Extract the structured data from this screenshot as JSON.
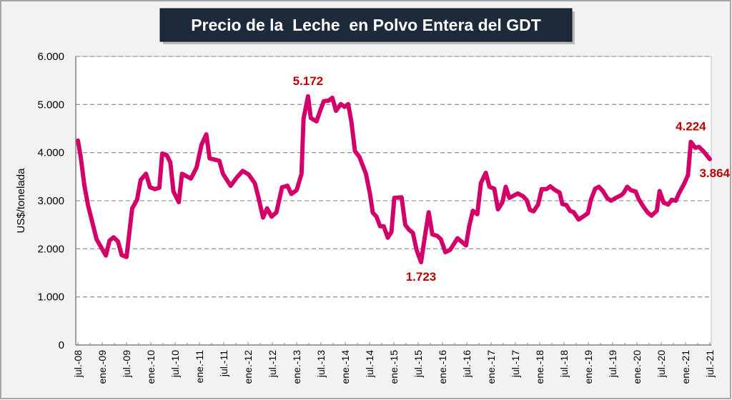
{
  "chart_data": {
    "type": "line",
    "title": "Precio de la  Leche  en Polvo Entera del GDT",
    "ylabel": "US$/tonelada",
    "xlabel": "",
    "ylim": [
      0,
      6000
    ],
    "xlim_months": [
      0,
      156
    ],
    "grid": "horizontal dashed",
    "line_color": "#d4006a",
    "annotation_color": "#c00000",
    "title_bg": "#1c2a3a",
    "y_ticks": [
      {
        "value": 0,
        "label": "0"
      },
      {
        "value": 1000,
        "label": "1.000"
      },
      {
        "value": 2000,
        "label": "2.000"
      },
      {
        "value": 3000,
        "label": "3.000"
      },
      {
        "value": 4000,
        "label": "4.000"
      },
      {
        "value": 5000,
        "label": "5.000"
      },
      {
        "value": 6000,
        "label": "6.000"
      }
    ],
    "x_ticks": [
      "jul.-08",
      "ene.-09",
      "jul.-09",
      "ene.-10",
      "jul.-10",
      "ene.-11",
      "jul.-11",
      "ene.-12",
      "jul.-12",
      "ene.-13",
      "jul.-13",
      "ene.-14",
      "jul.-14",
      "ene.-15",
      "jul.-15",
      "ene.-16",
      "jul.-16",
      "ene.-17",
      "jul.-17",
      "ene.-18",
      "jul.-18",
      "ene.-19",
      "jul.-19",
      "ene.-20",
      "jul.-20",
      "ene.-21",
      "jul.-21"
    ],
    "x_unit": "months since jul.-08",
    "series": [
      {
        "name": "Leche en Polvo Entera",
        "points": [
          [
            0,
            4250
          ],
          [
            0.7,
            3900
          ],
          [
            1.6,
            3310
          ],
          [
            2.5,
            2900
          ],
          [
            4.6,
            2200
          ],
          [
            6.9,
            1860
          ],
          [
            7.8,
            2170
          ],
          [
            8.8,
            2240
          ],
          [
            9.9,
            2150
          ],
          [
            10.8,
            1870
          ],
          [
            12,
            1830
          ],
          [
            13.4,
            2840
          ],
          [
            14.6,
            3020
          ],
          [
            15.5,
            3430
          ],
          [
            16.8,
            3560
          ],
          [
            17.8,
            3280
          ],
          [
            19,
            3240
          ],
          [
            20.1,
            3270
          ],
          [
            20.8,
            3980
          ],
          [
            21.9,
            3950
          ],
          [
            22.8,
            3800
          ],
          [
            23.6,
            3190
          ],
          [
            24.9,
            2970
          ],
          [
            25.7,
            3560
          ],
          [
            27.9,
            3460
          ],
          [
            29.3,
            3690
          ],
          [
            30.5,
            4160
          ],
          [
            31.7,
            4380
          ],
          [
            32.5,
            3880
          ],
          [
            34.9,
            3830
          ],
          [
            35.8,
            3560
          ],
          [
            37.7,
            3310
          ],
          [
            39.3,
            3490
          ],
          [
            40.7,
            3620
          ],
          [
            42.2,
            3540
          ],
          [
            43.7,
            3360
          ],
          [
            44.6,
            3060
          ],
          [
            45.7,
            2650
          ],
          [
            46.7,
            2840
          ],
          [
            47.8,
            2670
          ],
          [
            49,
            2760
          ],
          [
            50.4,
            3280
          ],
          [
            51.7,
            3310
          ],
          [
            52.7,
            3140
          ],
          [
            54,
            3220
          ],
          [
            55.2,
            3560
          ],
          [
            55.7,
            4700
          ],
          [
            56.8,
            5172
          ],
          [
            57.5,
            4720
          ],
          [
            58.9,
            4650
          ],
          [
            59.8,
            4870
          ],
          [
            60.7,
            5070
          ],
          [
            61.9,
            5080
          ],
          [
            62.8,
            5140
          ],
          [
            63.7,
            4870
          ],
          [
            64.9,
            5010
          ],
          [
            65.8,
            4950
          ],
          [
            66.7,
            5010
          ],
          [
            67.5,
            4650
          ],
          [
            68.4,
            4030
          ],
          [
            69.5,
            3910
          ],
          [
            71.1,
            3560
          ],
          [
            72.1,
            3140
          ],
          [
            72.8,
            2750
          ],
          [
            73.7,
            2670
          ],
          [
            74.6,
            2470
          ],
          [
            75.5,
            2470
          ],
          [
            76.5,
            2230
          ],
          [
            77.4,
            2350
          ],
          [
            78.1,
            3060
          ],
          [
            79.9,
            3070
          ],
          [
            80.8,
            2500
          ],
          [
            81.7,
            2400
          ],
          [
            82.7,
            2330
          ],
          [
            83.6,
            1980
          ],
          [
            84.7,
            1723
          ],
          [
            85.7,
            2280
          ],
          [
            86.6,
            2760
          ],
          [
            87.5,
            2300
          ],
          [
            88.7,
            2270
          ],
          [
            89.6,
            2200
          ],
          [
            90.7,
            1930
          ],
          [
            91.9,
            1980
          ],
          [
            93.7,
            2220
          ],
          [
            94.7,
            2150
          ],
          [
            95.8,
            2070
          ],
          [
            96.6,
            2470
          ],
          [
            97.5,
            2790
          ],
          [
            98.6,
            2720
          ],
          [
            99.5,
            3370
          ],
          [
            100.7,
            3580
          ],
          [
            101.6,
            3290
          ],
          [
            102.8,
            3250
          ],
          [
            103.7,
            2820
          ],
          [
            104.8,
            2970
          ],
          [
            105.6,
            3290
          ],
          [
            106.5,
            3060
          ],
          [
            108.6,
            3150
          ],
          [
            109.9,
            3090
          ],
          [
            110.8,
            3010
          ],
          [
            111.6,
            2810
          ],
          [
            112.5,
            2780
          ],
          [
            113.6,
            2920
          ],
          [
            114.5,
            3240
          ],
          [
            115.7,
            3240
          ],
          [
            116.6,
            3300
          ],
          [
            117.8,
            3220
          ],
          [
            118.9,
            3170
          ],
          [
            119.6,
            2930
          ],
          [
            120.6,
            2910
          ],
          [
            121.5,
            2790
          ],
          [
            122.4,
            2760
          ],
          [
            123.6,
            2610
          ],
          [
            124.9,
            2680
          ],
          [
            125.9,
            2740
          ],
          [
            126.6,
            3010
          ],
          [
            127.7,
            3250
          ],
          [
            128.6,
            3290
          ],
          [
            129.6,
            3200
          ],
          [
            130.7,
            3050
          ],
          [
            131.6,
            3000
          ],
          [
            132.8,
            3060
          ],
          [
            134.2,
            3120
          ],
          [
            134.7,
            3160
          ],
          [
            135.6,
            3290
          ],
          [
            136.5,
            3220
          ],
          [
            137.7,
            3190
          ],
          [
            138.4,
            3040
          ],
          [
            139.5,
            2890
          ],
          [
            140.6,
            2760
          ],
          [
            141.6,
            2690
          ],
          [
            142.9,
            2790
          ],
          [
            143.6,
            3200
          ],
          [
            144.6,
            2960
          ],
          [
            145.7,
            2920
          ],
          [
            146.6,
            3020
          ],
          [
            147.6,
            3000
          ],
          [
            148.3,
            3140
          ],
          [
            149.7,
            3360
          ],
          [
            150.6,
            3530
          ],
          [
            151.3,
            4224
          ],
          [
            152.4,
            4100
          ],
          [
            153.3,
            4120
          ],
          [
            154.5,
            4020
          ],
          [
            156,
            3864
          ]
        ]
      }
    ],
    "annotations": [
      {
        "label": "5.172",
        "month": 56.8,
        "value": 5172,
        "pos": "above"
      },
      {
        "label": "1.723",
        "month": 84.7,
        "value": 1723,
        "pos": "below"
      },
      {
        "label": "4.224",
        "month": 151.3,
        "value": 4224,
        "pos": "above"
      },
      {
        "label": "3.864",
        "month": 156,
        "value": 3864,
        "pos": "below"
      }
    ]
  }
}
